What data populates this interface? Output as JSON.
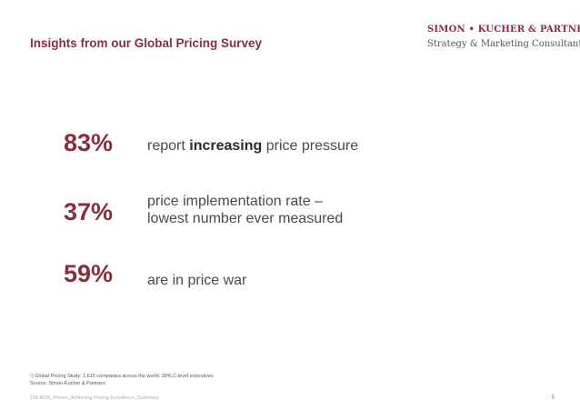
{
  "slide": {
    "title": "Insights from our Global Pricing Survey",
    "logo": {
      "name": "SIMON • KUCHER & PARTNERS",
      "tagline": "Strategy & Marketing Consultants"
    },
    "stats": [
      {
        "value": "83%",
        "desc_before": "report ",
        "desc_bold": "increasing",
        "desc_after": " price pressure"
      },
      {
        "value": "37%",
        "desc_line1": "price implementation rate –",
        "desc_line2": "lowest number ever measured"
      },
      {
        "value": "59%",
        "desc": "are in price war"
      }
    ],
    "footnote_line1": "¹) Global Pricing Study: 1,615 companies across the world; 39% C-level executives",
    "footnote_line2": "Source: Simon-Kucher & Partners",
    "file_ref": "1NL4005_Presrn_Achieving Pricing Excellence_Summary",
    "page_number": "5"
  },
  "colors": {
    "accent": "#8c2c3e",
    "text": "#4a4a4a"
  }
}
